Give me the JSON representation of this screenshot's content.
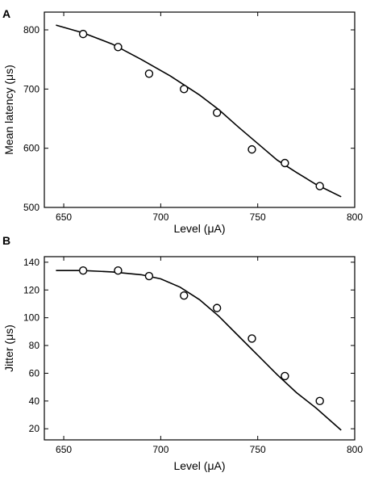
{
  "chart_data": [
    {
      "panel_label": "A",
      "type": "scatter",
      "xlabel": "Level (μA)",
      "ylabel": "Mean latency (μs)",
      "xlim": [
        640,
        800
      ],
      "ylim": [
        500,
        830
      ],
      "x_ticks": [
        650,
        700,
        750,
        800
      ],
      "y_ticks": [
        500,
        600,
        700,
        800
      ],
      "points": [
        {
          "x": 660,
          "y": 793
        },
        {
          "x": 678,
          "y": 771
        },
        {
          "x": 694,
          "y": 726
        },
        {
          "x": 712,
          "y": 700
        },
        {
          "x": 729,
          "y": 660
        },
        {
          "x": 747,
          "y": 598
        },
        {
          "x": 764,
          "y": 575
        },
        {
          "x": 782,
          "y": 536
        }
      ],
      "fit_line": [
        {
          "x": 646,
          "y": 808
        },
        {
          "x": 660,
          "y": 795
        },
        {
          "x": 675,
          "y": 776
        },
        {
          "x": 690,
          "y": 750
        },
        {
          "x": 705,
          "y": 722
        },
        {
          "x": 720,
          "y": 690
        },
        {
          "x": 730,
          "y": 665
        },
        {
          "x": 740,
          "y": 636
        },
        {
          "x": 750,
          "y": 608
        },
        {
          "x": 760,
          "y": 580
        },
        {
          "x": 770,
          "y": 559
        },
        {
          "x": 780,
          "y": 539
        },
        {
          "x": 793,
          "y": 518
        }
      ]
    },
    {
      "panel_label": "B",
      "type": "scatter",
      "xlabel": "Level (μA)",
      "ylabel": "Jitter (μs)",
      "xlim": [
        640,
        800
      ],
      "ylim": [
        12,
        144
      ],
      "x_ticks": [
        650,
        700,
        750,
        800
      ],
      "y_ticks": [
        20,
        40,
        60,
        80,
        100,
        120,
        140
      ],
      "points": [
        {
          "x": 660,
          "y": 134
        },
        {
          "x": 678,
          "y": 134
        },
        {
          "x": 694,
          "y": 130
        },
        {
          "x": 712,
          "y": 116
        },
        {
          "x": 729,
          "y": 107
        },
        {
          "x": 747,
          "y": 85
        },
        {
          "x": 764,
          "y": 58
        },
        {
          "x": 782,
          "y": 40
        }
      ],
      "fit_line": [
        {
          "x": 646,
          "y": 134
        },
        {
          "x": 660,
          "y": 134
        },
        {
          "x": 675,
          "y": 133
        },
        {
          "x": 690,
          "y": 131
        },
        {
          "x": 700,
          "y": 128
        },
        {
          "x": 710,
          "y": 122
        },
        {
          "x": 720,
          "y": 113
        },
        {
          "x": 730,
          "y": 101
        },
        {
          "x": 740,
          "y": 87
        },
        {
          "x": 750,
          "y": 73
        },
        {
          "x": 760,
          "y": 59
        },
        {
          "x": 770,
          "y": 46
        },
        {
          "x": 780,
          "y": 35
        },
        {
          "x": 793,
          "y": 19
        }
      ]
    }
  ]
}
